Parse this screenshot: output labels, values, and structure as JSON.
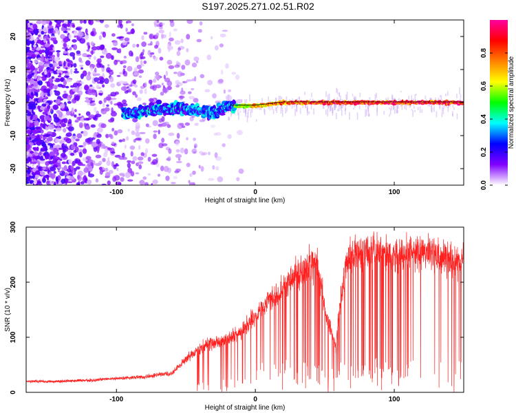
{
  "title": "S197.2025.271.02.51.R02",
  "chart_data": [
    {
      "type": "heatmap",
      "name": "spectrogram",
      "xlabel": "Height of straight line (km)",
      "ylabel": "Frequency (Hz)",
      "xlim": [
        -165,
        150
      ],
      "ylim": [
        -25,
        25
      ],
      "xticks": [
        -100,
        0,
        100
      ],
      "yticks": [
        -20,
        -10,
        0,
        10,
        20
      ],
      "colorbar": {
        "label": "Normalized spectral amplitude",
        "range": [
          0,
          1
        ],
        "ticks": [
          "0.0",
          "0.2",
          "0.4",
          "0.6",
          "0.8"
        ],
        "tick_values": [
          0.0,
          0.2,
          0.4,
          0.6,
          0.8
        ],
        "colors": [
          "#ffffff",
          "#8000ff",
          "#0000ff",
          "#00ffff",
          "#00ff00",
          "#ffff00",
          "#ff8000",
          "#ff0000",
          "#ff00a0"
        ]
      },
      "ridge": [
        {
          "height_km": -85,
          "freq_hz": -3,
          "amplitude": 0.3
        },
        {
          "height_km": -70,
          "freq_hz": -2,
          "amplitude": 0.3
        },
        {
          "height_km": -50,
          "freq_hz": -2,
          "amplitude": 0.35
        },
        {
          "height_km": -30,
          "freq_hz": -3,
          "amplitude": 0.35
        },
        {
          "height_km": -18,
          "freq_hz": -1,
          "amplitude": 0.5
        },
        {
          "height_km": 0,
          "freq_hz": -1,
          "amplitude": 0.7
        },
        {
          "height_km": 20,
          "freq_hz": 0,
          "amplitude": 0.8
        },
        {
          "height_km": 60,
          "freq_hz": 0,
          "amplitude": 0.85
        },
        {
          "height_km": 100,
          "freq_hz": 0,
          "amplitude": 0.9
        },
        {
          "height_km": 150,
          "freq_hz": 0,
          "amplitude": 0.9
        }
      ]
    },
    {
      "type": "line",
      "name": "snr",
      "xlabel": "Height of straight line (km)",
      "ylabel": "SNR (10 * v/v)",
      "xlim": [
        -165,
        150
      ],
      "ylim": [
        0,
        300
      ],
      "xticks": [
        -100,
        0,
        100
      ],
      "yticks": [
        0,
        100,
        200,
        300
      ],
      "color": "#ff2020",
      "series": [
        {
          "name": "SNR",
          "x": [
            -165,
            -140,
            -120,
            -100,
            -80,
            -60,
            -50,
            -40,
            -30,
            -20,
            -10,
            0,
            10,
            20,
            30,
            40,
            45,
            50,
            52,
            55,
            58,
            60,
            65,
            70,
            80,
            90,
            100,
            110,
            120,
            130,
            140,
            150
          ],
          "y": [
            20,
            20,
            22,
            25,
            28,
            35,
            60,
            80,
            90,
            95,
            110,
            140,
            165,
            190,
            215,
            230,
            235,
            150,
            130,
            110,
            80,
            140,
            230,
            255,
            255,
            255,
            250,
            255,
            255,
            250,
            245,
            240
          ]
        }
      ]
    }
  ]
}
